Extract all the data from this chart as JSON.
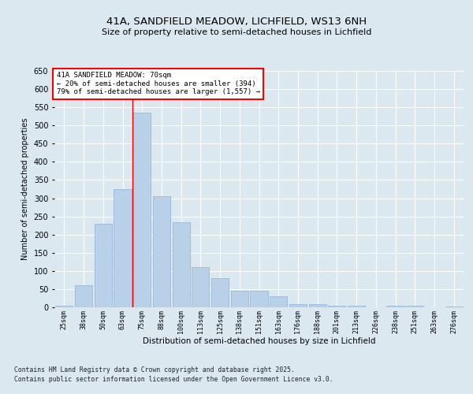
{
  "title_line1": "41A, SANDFIELD MEADOW, LICHFIELD, WS13 6NH",
  "title_line2": "Size of property relative to semi-detached houses in Lichfield",
  "xlabel": "Distribution of semi-detached houses by size in Lichfield",
  "ylabel": "Number of semi-detached properties",
  "bins": [
    "25sqm",
    "38sqm",
    "50sqm",
    "63sqm",
    "75sqm",
    "88sqm",
    "100sqm",
    "113sqm",
    "125sqm",
    "138sqm",
    "151sqm",
    "163sqm",
    "176sqm",
    "188sqm",
    "201sqm",
    "213sqm",
    "226sqm",
    "238sqm",
    "251sqm",
    "263sqm",
    "276sqm"
  ],
  "values": [
    5,
    60,
    230,
    325,
    535,
    305,
    235,
    110,
    80,
    45,
    45,
    30,
    8,
    8,
    4,
    4,
    1,
    5,
    5,
    1,
    2
  ],
  "bar_color": "#b8d0e8",
  "bar_edge_color": "#9ab8d8",
  "property_line_x": 3.5,
  "annotation_text_line1": "41A SANDFIELD MEADOW: 70sqm",
  "annotation_text_line2": "← 20% of semi-detached houses are smaller (394)",
  "annotation_text_line3": "79% of semi-detached houses are larger (1,557) →",
  "ylim": [
    0,
    650
  ],
  "yticks": [
    0,
    50,
    100,
    150,
    200,
    250,
    300,
    350,
    400,
    450,
    500,
    550,
    600,
    650
  ],
  "fig_bg_color": "#dce8f0",
  "plot_bg_color": "#dce8f0",
  "footer_line1": "Contains HM Land Registry data © Crown copyright and database right 2025.",
  "footer_line2": "Contains public sector information licensed under the Open Government Licence v3.0."
}
